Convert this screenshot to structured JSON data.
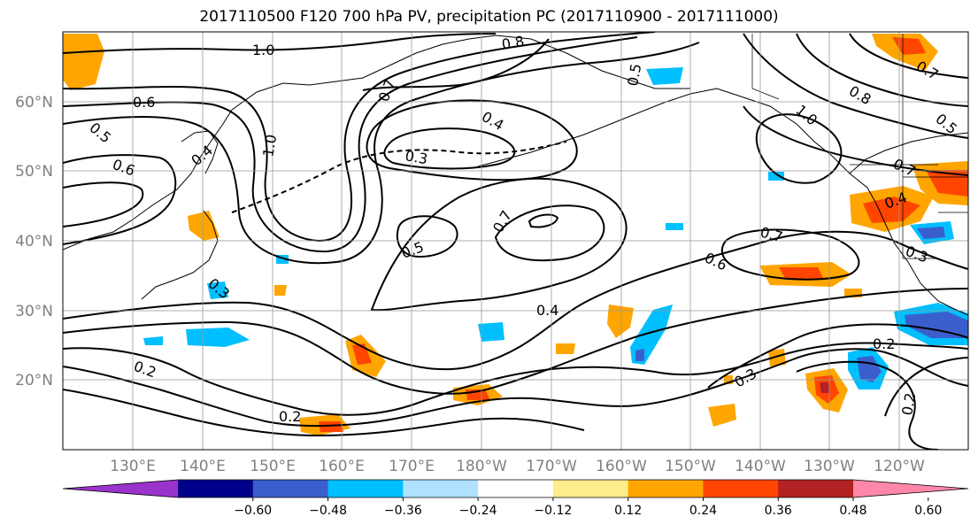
{
  "title": "2017110500 F120 700 hPa PV, precipitation PC (2017110900 - 2017111000)",
  "lat_labels": [
    "60°N",
    "50°N",
    "40°N",
    "30°N",
    "20°N"
  ],
  "lon_labels": [
    "130°E",
    "140°E",
    "150°E",
    "160°E",
    "170°E",
    "180°W",
    "170°W",
    "160°W",
    "150°W",
    "140°W",
    "130°W",
    "120°W"
  ],
  "contour_labels": [
    "1.0",
    "0.8",
    "0.7",
    "0.6",
    "0.6",
    "0.5",
    "0.4",
    "0.3",
    "1.0",
    "0.4",
    "0.7",
    "0.5",
    "0.7",
    "0.6",
    "0.7",
    "0.3",
    "0.4",
    "0.2",
    "0.2",
    "0.3",
    "0.2",
    "0.2",
    "0.8",
    "0.5",
    "1.0",
    "0.7",
    "0.4",
    "0.5",
    "0.3"
  ],
  "colorbar": {
    "tick_labels": [
      "−0.60",
      "−0.48",
      "−0.36",
      "−0.24",
      "−0.12",
      "0.12",
      "0.24",
      "0.36",
      "0.48",
      "0.60"
    ],
    "colors": [
      "#9933cc",
      "#00008b",
      "#3a5fcd",
      "#00bfff",
      "#b0e2ff",
      "#ffffff",
      "#ffec8b",
      "#ffa500",
      "#ff4500",
      "#b22222",
      "#ff88aa"
    ]
  },
  "colors": {
    "positive": "#ffa500",
    "strong_positive": "#ff4500",
    "peak_positive": "#b22222",
    "light_positive": "#ffec8b",
    "negative": "#00bfff",
    "strong_negative": "#3a5fcd",
    "light_negative": "#b0e2ff"
  }
}
